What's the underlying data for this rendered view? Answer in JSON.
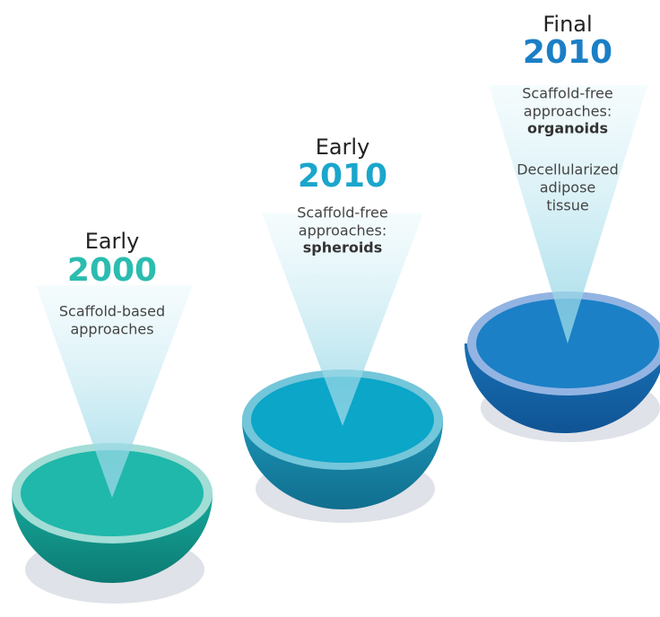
{
  "stages": [
    {
      "period": "Early",
      "year": "2000",
      "description": [
        "Scaffold-based",
        "approaches"
      ]
    },
    {
      "period": "Early",
      "year": "2010",
      "description": [
        "Scaffold-free",
        "approaches:"
      ],
      "highlight": "spheroids"
    },
    {
      "period": "Final",
      "year": "2010",
      "description": [
        "Scaffold-free",
        "approaches:"
      ],
      "highlight": "organoids",
      "note": [
        "Decellularized",
        "adipose",
        "tissue"
      ]
    }
  ]
}
